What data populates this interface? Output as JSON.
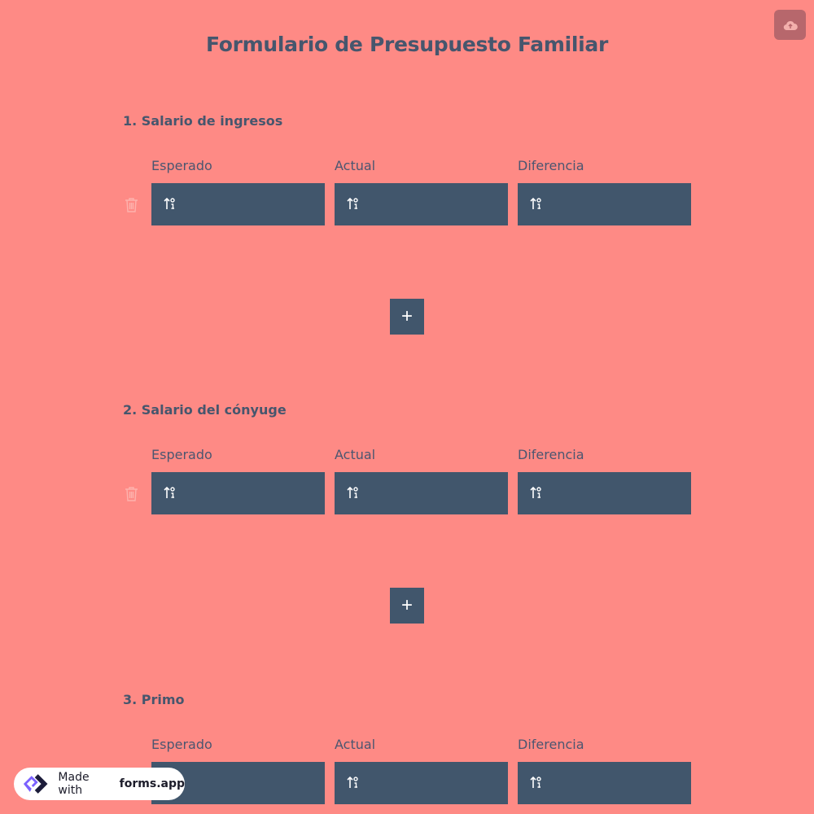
{
  "title": "Formulario de Presupuesto Familiar",
  "upload_icon": "cloud-upload-icon",
  "columns": [
    "Esperado",
    "Actual",
    "Diferencia"
  ],
  "input_icon": "numeric-input-icon",
  "add_label": "+",
  "sections": [
    {
      "label": "1.  Salario de ingresos"
    },
    {
      "label": "2. Salario del cónyuge"
    },
    {
      "label": "3. Primo"
    }
  ],
  "badge": {
    "prefix": "Made with",
    "brand": "forms.app"
  },
  "colors": {
    "background": "#fe8a85",
    "input": "#41566c",
    "text": "#46566d"
  }
}
